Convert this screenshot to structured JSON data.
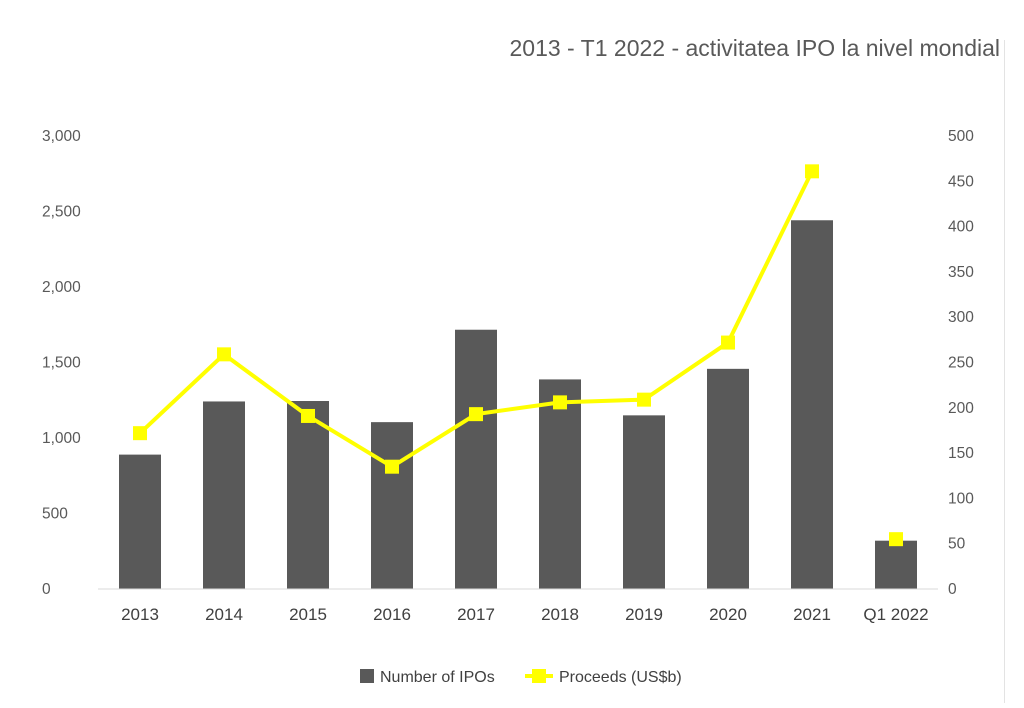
{
  "chart_data": {
    "type": "bar",
    "title": "2013 - T1 2022 - activitatea IPO la nivel mondial",
    "categories": [
      "2013",
      "2014",
      "2015",
      "2016",
      "2017",
      "2018",
      "2019",
      "2020",
      "2021",
      "Q1 2022"
    ],
    "series": [
      {
        "name": "Number of IPOs",
        "type": "bar",
        "axis": "left",
        "color": "#595959",
        "values": [
          890,
          1242,
          1245,
          1105,
          1717,
          1388,
          1150,
          1458,
          2442,
          320
        ]
      },
      {
        "name": "Proceeds (US$b)",
        "type": "line",
        "axis": "right",
        "color": "#ffff00",
        "marker": "square",
        "values": [
          172,
          259,
          191,
          135,
          193,
          206,
          209,
          272,
          461,
          55
        ]
      }
    ],
    "y_left": {
      "ylim": [
        0,
        3000
      ],
      "ticks": [
        "0",
        "500",
        "1,000",
        "1,500",
        "2,000",
        "2,500",
        "3,000"
      ]
    },
    "y_right": {
      "ylim": [
        0,
        500
      ],
      "ticks": [
        "0",
        "50",
        "100",
        "150",
        "200",
        "250",
        "300",
        "350",
        "400",
        "450",
        "500"
      ]
    },
    "grid": false,
    "legend": "bottom"
  }
}
